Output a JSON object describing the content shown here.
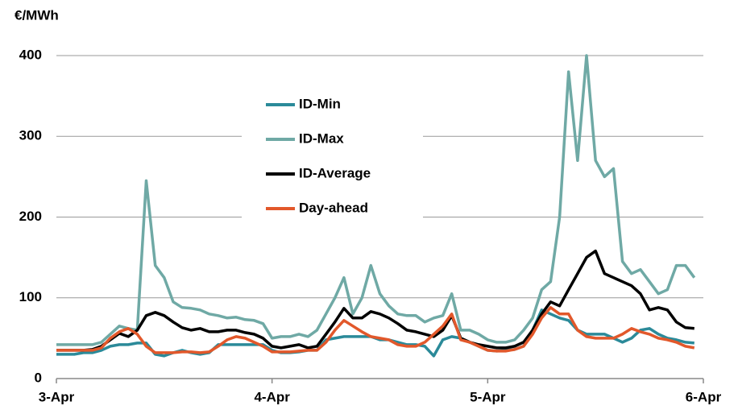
{
  "chart_data": {
    "type": "line",
    "y_label": "€/MWh",
    "x": [
      0,
      1,
      2,
      3,
      4,
      5,
      6,
      7,
      8,
      9,
      10,
      11,
      12,
      13,
      14,
      15,
      16,
      17,
      18,
      19,
      20,
      21,
      22,
      23,
      24,
      25,
      26,
      27,
      28,
      29,
      30,
      31,
      32,
      33,
      34,
      35,
      36,
      37,
      38,
      39,
      40,
      41,
      42,
      43,
      44,
      45,
      46,
      47,
      48,
      49,
      50,
      51,
      52,
      53,
      54,
      55,
      56,
      57,
      58,
      59,
      60,
      61,
      62,
      63,
      64,
      65,
      66,
      67,
      68,
      69,
      70,
      71
    ],
    "xlim": [
      0,
      72
    ],
    "xticks": [
      {
        "value": 0,
        "label": "3-Apr"
      },
      {
        "value": 24,
        "label": "4-Apr"
      },
      {
        "value": 48,
        "label": "5-Apr"
      },
      {
        "value": 72,
        "label": "6-Apr"
      }
    ],
    "ylim": [
      0,
      400
    ],
    "yticks": [
      0,
      100,
      200,
      300,
      400
    ],
    "grid": true,
    "series": [
      {
        "name": "ID-Min",
        "color": "#2b8a99",
        "values": [
          30,
          30,
          30,
          32,
          32,
          35,
          40,
          42,
          42,
          44,
          44,
          30,
          28,
          32,
          35,
          32,
          30,
          32,
          42,
          42,
          42,
          42,
          42,
          42,
          35,
          32,
          32,
          33,
          35,
          35,
          48,
          50,
          52,
          52,
          52,
          52,
          48,
          48,
          45,
          42,
          42,
          40,
          28,
          48,
          52,
          50,
          45,
          40,
          35,
          34,
          35,
          36,
          40,
          60,
          85,
          80,
          75,
          72,
          60,
          55,
          55,
          55,
          50,
          45,
          50,
          60,
          62,
          55,
          50,
          48,
          45,
          44
        ]
      },
      {
        "name": "ID-Max",
        "color": "#6fa9a5",
        "values": [
          42,
          42,
          42,
          42,
          42,
          45,
          55,
          65,
          62,
          60,
          245,
          140,
          125,
          95,
          88,
          87,
          85,
          80,
          78,
          75,
          76,
          73,
          72,
          68,
          50,
          52,
          52,
          55,
          52,
          60,
          80,
          100,
          125,
          80,
          100,
          140,
          105,
          90,
          80,
          78,
          78,
          70,
          75,
          78,
          105,
          60,
          60,
          55,
          48,
          45,
          45,
          48,
          60,
          75,
          110,
          120,
          200,
          380,
          270,
          400,
          270,
          250,
          260,
          145,
          130,
          135,
          120,
          105,
          110,
          140,
          140,
          125
        ]
      },
      {
        "name": "ID-Average",
        "color": "#000000",
        "values": [
          35,
          35,
          35,
          35,
          36,
          40,
          48,
          56,
          52,
          60,
          78,
          82,
          78,
          70,
          63,
          60,
          62,
          58,
          58,
          60,
          60,
          57,
          55,
          50,
          40,
          38,
          40,
          42,
          38,
          40,
          55,
          70,
          87,
          75,
          75,
          83,
          80,
          75,
          68,
          60,
          58,
          55,
          52,
          60,
          78,
          50,
          45,
          42,
          40,
          38,
          38,
          40,
          45,
          60,
          80,
          95,
          90,
          110,
          130,
          150,
          158,
          130,
          125,
          120,
          115,
          105,
          85,
          88,
          85,
          70,
          63,
          62
        ]
      },
      {
        "name": "Day-ahead",
        "color": "#e2582b",
        "values": [
          35,
          35,
          35,
          35,
          35,
          38,
          50,
          58,
          62,
          55,
          40,
          32,
          32,
          32,
          33,
          33,
          32,
          33,
          40,
          48,
          52,
          50,
          45,
          40,
          33,
          33,
          33,
          34,
          35,
          35,
          45,
          60,
          72,
          65,
          58,
          52,
          50,
          48,
          42,
          40,
          40,
          45,
          55,
          65,
          80,
          48,
          45,
          40,
          35,
          34,
          34,
          36,
          40,
          55,
          75,
          88,
          80,
          80,
          60,
          52,
          50,
          50,
          50,
          55,
          62,
          58,
          55,
          50,
          48,
          45,
          40,
          38
        ]
      }
    ]
  }
}
